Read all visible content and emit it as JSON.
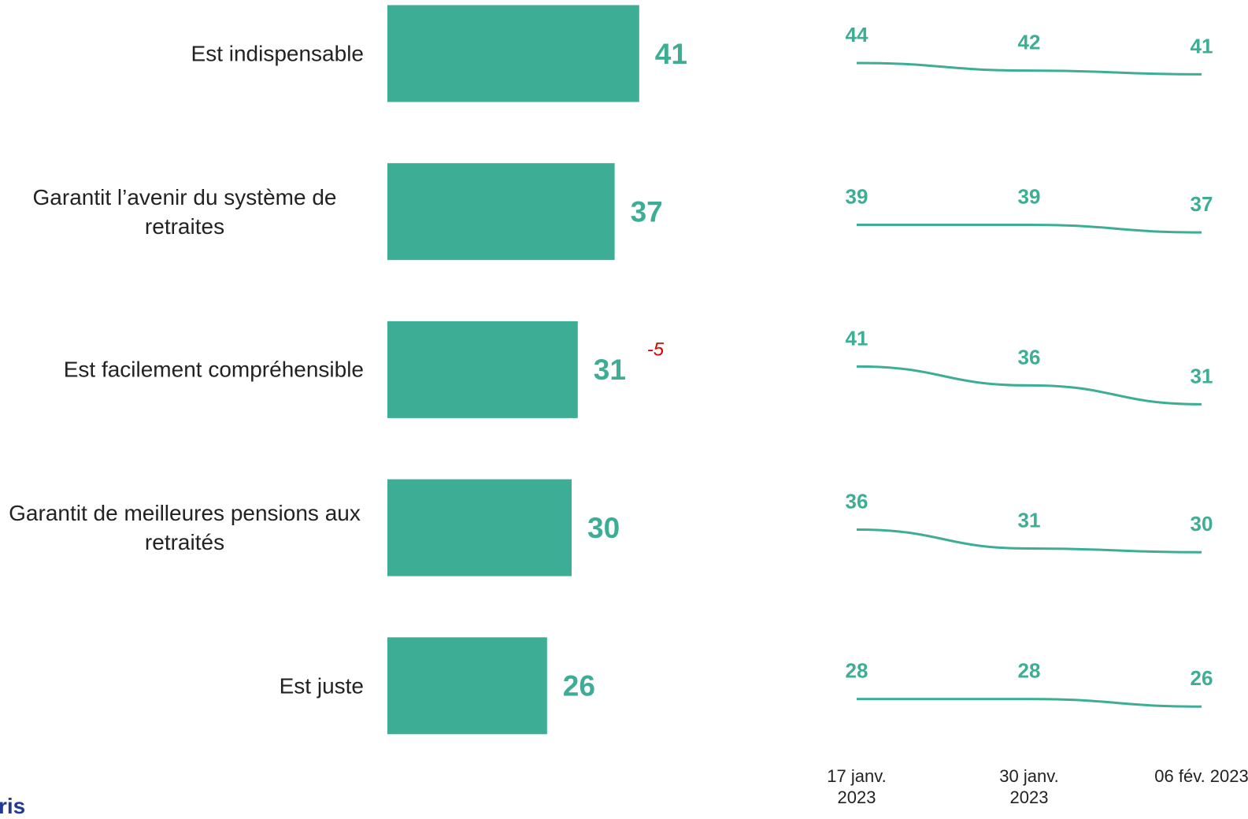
{
  "chart_data": [
    {
      "type": "bar",
      "categories": [
        "Est indispensable",
        "Garantit l’avenir du système de retraites",
        "Est facilement compréhensible",
        "Garantit de meilleures pensions aux retraités",
        "Est juste"
      ],
      "values": [
        41,
        37,
        31,
        30,
        26
      ],
      "annotations": [
        null,
        null,
        "-5",
        null,
        null
      ],
      "color": "#3dae95"
    },
    {
      "type": "line",
      "x": [
        "17 janv. 2023",
        "30 janv. 2023",
        "06 fév. 2023"
      ],
      "series": [
        {
          "values": [
            44,
            42,
            41
          ],
          "color": "#3dae95"
        },
        {
          "values": [
            39,
            39,
            37
          ],
          "color": "#3dae95"
        },
        {
          "values": [
            41,
            36,
            31
          ],
          "color": "#3dae95"
        },
        {
          "values": [
            36,
            31,
            30
          ],
          "color": "#3dae95"
        },
        {
          "values": [
            28,
            28,
            26
          ],
          "color": "#3dae95"
        }
      ]
    }
  ],
  "logo": "ris"
}
